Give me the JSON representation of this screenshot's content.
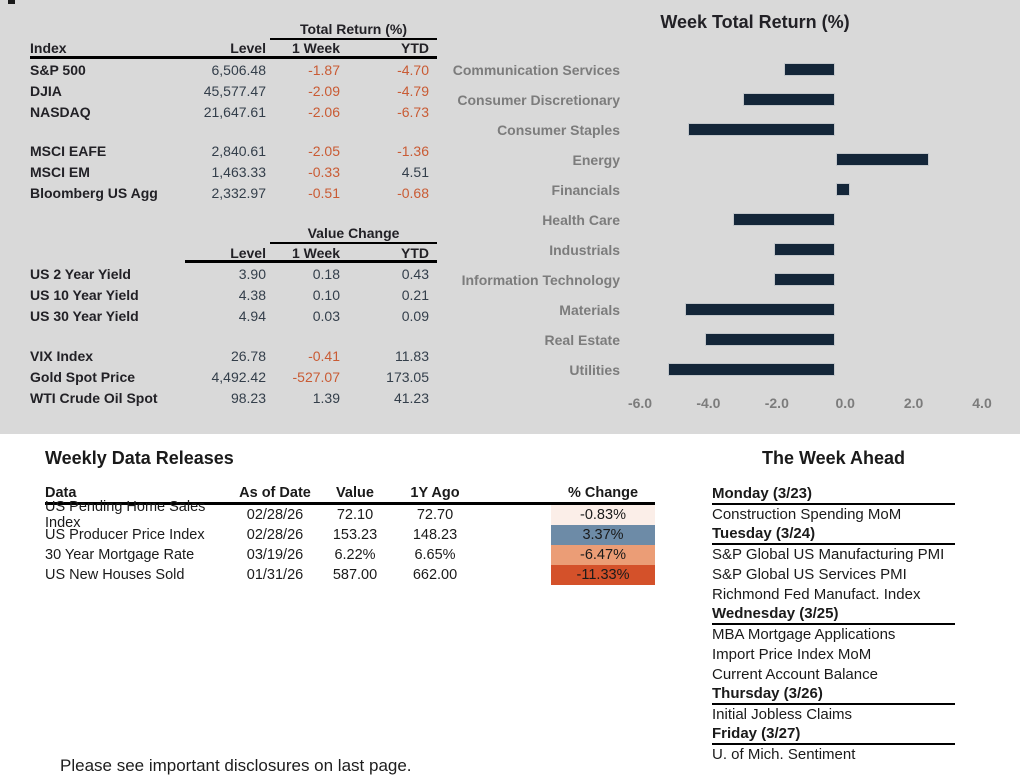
{
  "colors": {
    "panel_bg": "#d9d9d9",
    "bar_navy": "#142639",
    "negative_orange": "#c95b34",
    "positive_dark": "#333e4a",
    "chart_label_gray": "#7c7c7c"
  },
  "index_table": {
    "group_header": "Total Return (%)",
    "columns": {
      "c1": "Index",
      "c2": "Level",
      "c3": "1 Week",
      "c4": "YTD"
    },
    "rows": [
      {
        "name": "S&P 500",
        "level": "6,506.48",
        "week": "-1.87",
        "ytd": "-4.70"
      },
      {
        "name": "DJIA",
        "level": "45,577.47",
        "week": "-2.09",
        "ytd": "-4.79"
      },
      {
        "name": "NASDAQ",
        "level": "21,647.61",
        "week": "-2.06",
        "ytd": "-6.73"
      },
      {
        "name": "MSCI EAFE",
        "level": "2,840.61",
        "week": "-2.05",
        "ytd": "-1.36"
      },
      {
        "name": "MSCI EM",
        "level": "1,463.33",
        "week": "-0.33",
        "ytd": "4.51"
      },
      {
        "name": "Bloomberg US Agg",
        "level": "2,332.97",
        "week": "-0.51",
        "ytd": "-0.68"
      }
    ]
  },
  "change_table": {
    "group_header": "Value Change",
    "columns": {
      "c1": "",
      "c2": "Level",
      "c3": "1 Week",
      "c4": "YTD"
    },
    "rows": [
      {
        "name": "US 2 Year Yield",
        "level": "3.90",
        "week": "0.18",
        "ytd": "0.43"
      },
      {
        "name": "US 10 Year Yield",
        "level": "4.38",
        "week": "0.10",
        "ytd": "0.21"
      },
      {
        "name": "US 30 Year Yield",
        "level": "4.94",
        "week": "0.03",
        "ytd": "0.09"
      },
      {
        "name": "VIX Index",
        "level": "26.78",
        "week": "-0.41",
        "ytd": "11.83"
      },
      {
        "name": "Gold Spot Price",
        "level": "4,492.42",
        "week": "-527.07",
        "ytd": "173.05"
      },
      {
        "name": "WTI Crude Oil Spot",
        "level": "98.23",
        "week": "1.39",
        "ytd": "41.23"
      }
    ]
  },
  "chart_data": {
    "type": "bar",
    "orientation": "horizontal",
    "title": "Week Total Return (%)",
    "categories": [
      "Communication Services",
      "Consumer Discretionary",
      "Consumer Staples",
      "Energy",
      "Financials",
      "Health Care",
      "Industrials",
      "Information Technology",
      "Materials",
      "Real Estate",
      "Utilities"
    ],
    "values": [
      -1.5,
      -2.7,
      -4.3,
      2.7,
      0.4,
      -3.0,
      -1.8,
      -1.8,
      -4.4,
      -3.8,
      -4.9
    ],
    "xlabel": "",
    "ylabel": "",
    "xlim": [
      -6.0,
      4.0
    ],
    "x_ticks": [
      "-6.0",
      "-4.0",
      "-2.0",
      "0.0",
      "2.0",
      "4.0"
    ],
    "grid": false,
    "legend": "none",
    "bar_color": "#142639"
  },
  "weekly_releases": {
    "title": "Weekly Data Releases",
    "columns": {
      "c1": "Data",
      "c2": "As of Date",
      "c3": "Value",
      "c4": "1Y Ago",
      "c5": "% Change"
    },
    "rows": [
      {
        "data": "US Pending Home Sales Index",
        "as_of": "02/28/26",
        "value": "72.10",
        "year_ago": "72.70",
        "pct": "-0.83%",
        "pct_bg": "#fbeee8"
      },
      {
        "data": "US Producer Price Index",
        "as_of": "02/28/26",
        "value": "153.23",
        "year_ago": "148.23",
        "pct": "3.37%",
        "pct_bg": "#6d8ba7"
      },
      {
        "data": "30 Year Mortgage Rate",
        "as_of": "03/19/26",
        "value": "6.22%",
        "year_ago": "6.65%",
        "pct": "-6.47%",
        "pct_bg": "#eb9d76"
      },
      {
        "data": "US New Houses Sold",
        "as_of": "01/31/26",
        "value": "587.00",
        "year_ago": "662.00",
        "pct": "-11.33%",
        "pct_bg": "#d4512a"
      }
    ]
  },
  "week_ahead": {
    "title": "The Week Ahead",
    "days": [
      {
        "label": "Monday (3/23)",
        "items": [
          "Construction Spending MoM"
        ]
      },
      {
        "label": "Tuesday (3/24)",
        "items": [
          "S&P Global US Manufacturing PMI",
          "S&P Global US Services PMI",
          "Richmond Fed Manufact. Index"
        ]
      },
      {
        "label": "Wednesday (3/25)",
        "items": [
          "MBA Mortgage Applications",
          "Import Price Index MoM",
          "Current Account Balance"
        ]
      },
      {
        "label": "Thursday (3/26)",
        "items": [
          "Initial Jobless Claims"
        ]
      },
      {
        "label": "Friday (3/27)",
        "items": [
          "U. of Mich. Sentiment"
        ]
      }
    ]
  },
  "footer": {
    "disclosure": "Please see important disclosures on last page."
  }
}
